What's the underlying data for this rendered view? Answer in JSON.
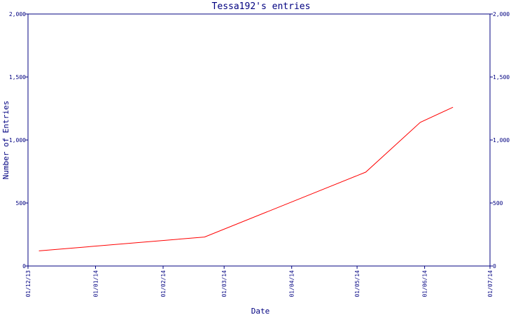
{
  "chart_data": {
    "type": "line",
    "title": "Tessa192's entries",
    "xlabel": "Date",
    "ylabel": "Number of Entries",
    "x_ticks": [
      "01/12/13",
      "01/01/14",
      "01/02/14",
      "01/03/14",
      "01/04/14",
      "01/05/14",
      "01/06/14",
      "01/07/14"
    ],
    "y_ticks": [
      "0",
      "500",
      "1,000",
      "1,500",
      "2,000"
    ],
    "ylim": [
      0,
      2000
    ],
    "xlim": [
      "2013-12-01",
      "2014-07-01"
    ],
    "grid": false,
    "right_axis": true,
    "series": [
      {
        "color": "#ff0000",
        "x": [
          "2013-12-06",
          "2014-02-20",
          "2014-05-05",
          "2014-05-30",
          "2014-06-14"
        ],
        "y": [
          120,
          230,
          745,
          1140,
          1260
        ]
      }
    ]
  }
}
